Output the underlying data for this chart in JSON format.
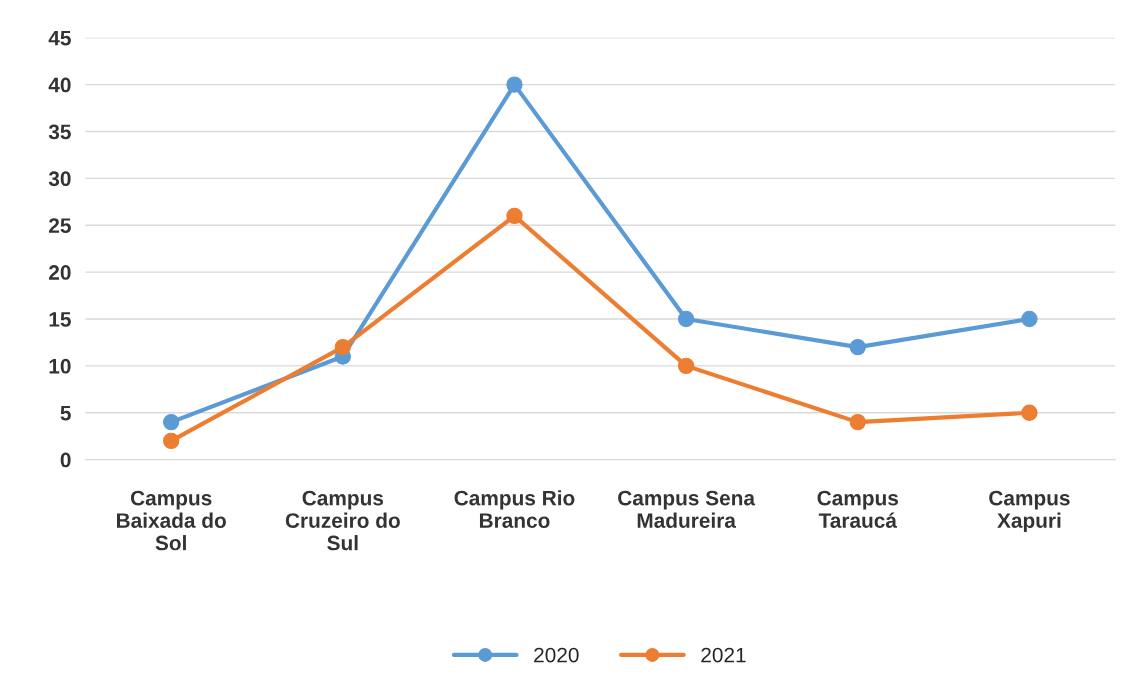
{
  "chart_data": {
    "type": "line",
    "categories": [
      "Campus Baixada do Sol",
      "Campus Cruzeiro do Sul",
      "Campus Rio Branco",
      "Campus Sena Madureira",
      "Campus Taraucá",
      "Campus Xapuri"
    ],
    "series": [
      {
        "name": "2020",
        "color": "#5b9bd5",
        "values": [
          4,
          11,
          40,
          15,
          12,
          15
        ]
      },
      {
        "name": "2021",
        "color": "#ed7d31",
        "values": [
          2,
          12,
          26,
          10,
          4,
          5
        ]
      }
    ],
    "ylim": [
      0,
      45
    ],
    "yticks": [
      0,
      5,
      10,
      15,
      20,
      25,
      30,
      35,
      40,
      45
    ],
    "grid": "y",
    "legend": "bottom",
    "marker": "circle",
    "line_style": "solid"
  }
}
